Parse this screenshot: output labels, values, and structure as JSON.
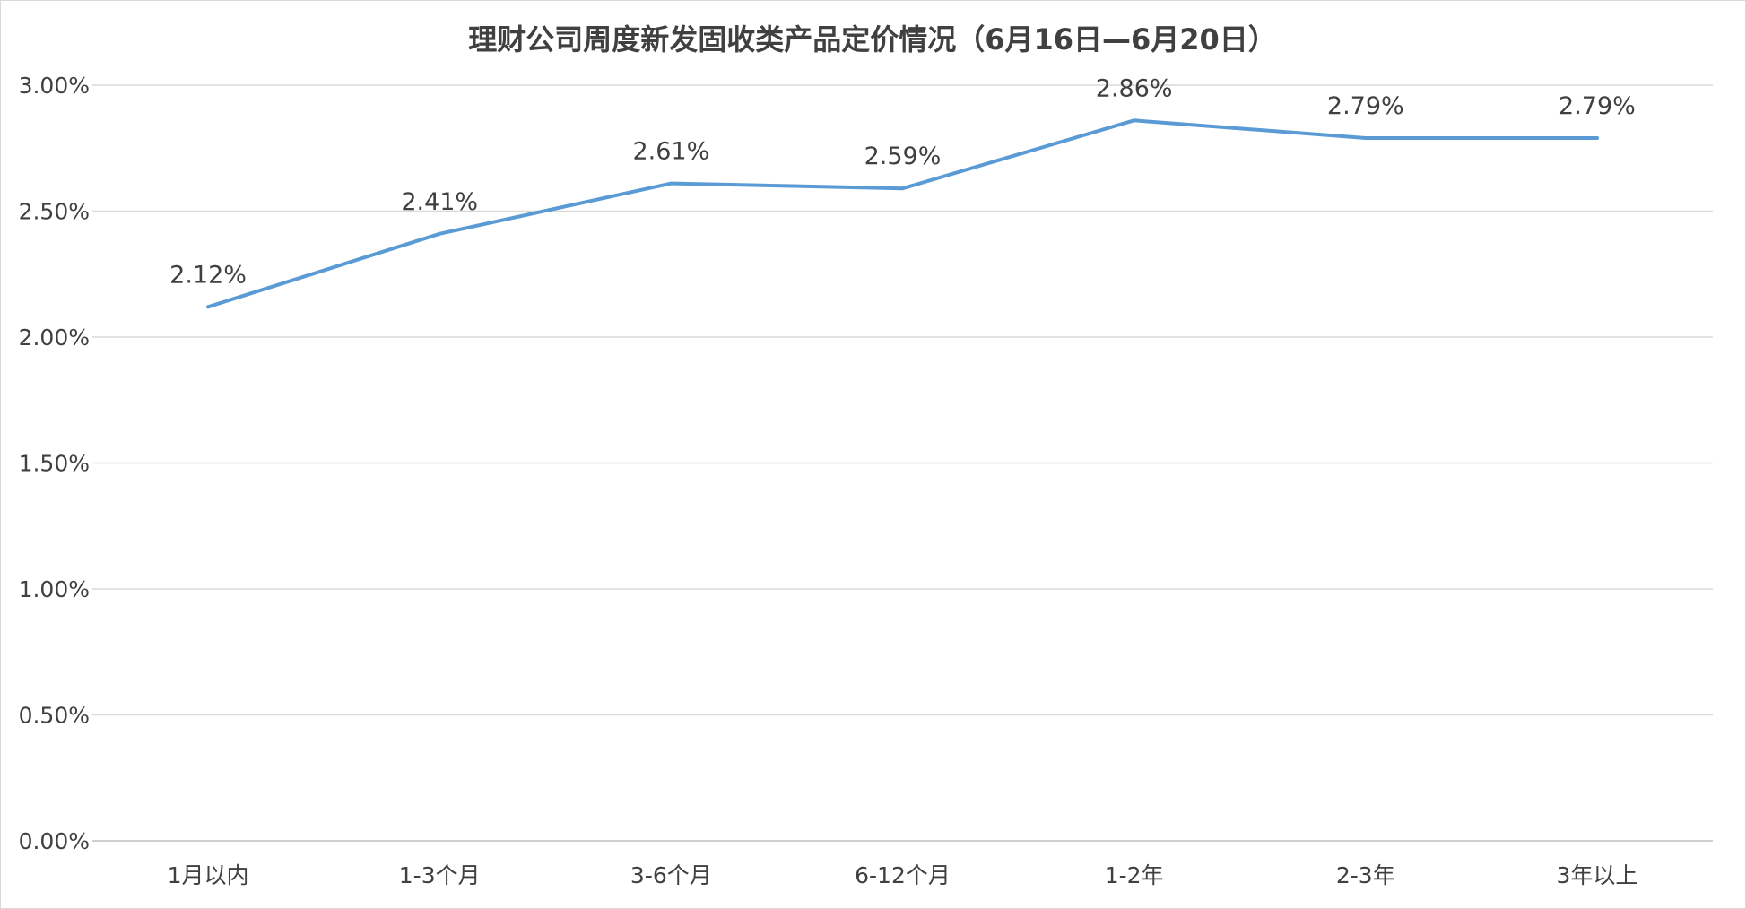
{
  "chart_data": {
    "type": "line",
    "title": "理财公司周度新发固收类产品定价情况（6月16日—6月20日）",
    "xlabel": "",
    "ylabel": "",
    "categories": [
      "1月以内",
      "1-3个月",
      "3-6个月",
      "6-12个月",
      "1-2年",
      "2-3年",
      "3年以上"
    ],
    "series": [
      {
        "values": [
          2.12,
          2.41,
          2.61,
          2.59,
          2.86,
          2.79,
          2.79
        ],
        "labels": [
          "2.12%",
          "2.41%",
          "2.61%",
          "2.59%",
          "2.86%",
          "2.79%",
          "2.79%"
        ],
        "color": "#5b9bd5"
      }
    ],
    "ylim": [
      0,
      3
    ],
    "yticks": [
      0,
      0.5,
      1.0,
      1.5,
      2.0,
      2.5,
      3.0
    ],
    "ytick_labels": [
      "0.00%",
      "0.50%",
      "1.00%",
      "1.50%",
      "2.00%",
      "2.50%",
      "3.00%"
    ],
    "grid": true,
    "legend": "none"
  }
}
